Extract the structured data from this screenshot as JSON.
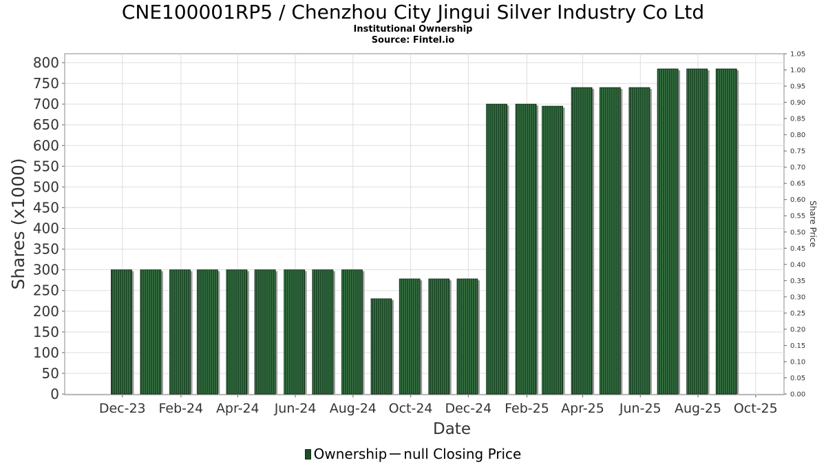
{
  "title": "CNE100001RP5 / Chenzhou City Jingui Silver Industry Co Ltd",
  "subtitle": "Institutional Ownership",
  "source": "Source: Fintel.io",
  "legend": {
    "ownership": "Ownership",
    "price": "null Closing Price"
  },
  "colors": {
    "bar": "#1f4d2a",
    "bar_stripe": "#3d7a49",
    "bar_shadow": "#9a9a9a",
    "grid": "#dddddd"
  },
  "chart_data": {
    "type": "bar",
    "xlabel": "Date",
    "ylabel": "Shares (x1000)",
    "y2label": "Share Price",
    "ylim": [
      0,
      820
    ],
    "y2lim": [
      0,
      1.05
    ],
    "yticks": [
      0,
      50,
      100,
      150,
      200,
      250,
      300,
      350,
      400,
      450,
      500,
      550,
      600,
      650,
      700,
      750,
      800
    ],
    "y2ticks": [
      "0.00",
      "0.05",
      "0.10",
      "0.15",
      "0.20",
      "0.25",
      "0.30",
      "0.35",
      "0.40",
      "0.45",
      "0.50",
      "0.55",
      "0.60",
      "0.65",
      "0.70",
      "0.75",
      "0.80",
      "0.85",
      "0.90",
      "0.95",
      "1.00",
      "1.05"
    ],
    "x_start": "2023-10-01",
    "x_end": "2025-10-31",
    "xticks": [
      {
        "date": "2023-12-01",
        "label": "Dec-23"
      },
      {
        "date": "2024-02-01",
        "label": "Feb-24"
      },
      {
        "date": "2024-04-01",
        "label": "Apr-24"
      },
      {
        "date": "2024-06-01",
        "label": "Jun-24"
      },
      {
        "date": "2024-08-01",
        "label": "Aug-24"
      },
      {
        "date": "2024-10-01",
        "label": "Oct-24"
      },
      {
        "date": "2024-12-01",
        "label": "Dec-24"
      },
      {
        "date": "2025-02-01",
        "label": "Feb-25"
      },
      {
        "date": "2025-04-01",
        "label": "Apr-25"
      },
      {
        "date": "2025-06-01",
        "label": "Jun-25"
      },
      {
        "date": "2025-08-01",
        "label": "Aug-25"
      },
      {
        "date": "2025-10-01",
        "label": "Oct-25"
      }
    ],
    "grid": true,
    "legend_position": "bottom",
    "series": [
      {
        "name": "Ownership",
        "points": [
          {
            "date": "2023-11-30",
            "value": 300
          },
          {
            "date": "2023-12-31",
            "value": 300
          },
          {
            "date": "2024-01-31",
            "value": 300
          },
          {
            "date": "2024-02-29",
            "value": 300
          },
          {
            "date": "2024-03-31",
            "value": 300
          },
          {
            "date": "2024-04-30",
            "value": 300
          },
          {
            "date": "2024-05-31",
            "value": 300
          },
          {
            "date": "2024-06-30",
            "value": 300
          },
          {
            "date": "2024-07-31",
            "value": 300
          },
          {
            "date": "2024-08-31",
            "value": 230
          },
          {
            "date": "2024-09-30",
            "value": 278
          },
          {
            "date": "2024-10-31",
            "value": 278
          },
          {
            "date": "2024-11-30",
            "value": 278
          },
          {
            "date": "2024-12-31",
            "value": 700
          },
          {
            "date": "2025-01-31",
            "value": 700
          },
          {
            "date": "2025-02-28",
            "value": 695
          },
          {
            "date": "2025-03-31",
            "value": 740
          },
          {
            "date": "2025-04-30",
            "value": 740
          },
          {
            "date": "2025-05-31",
            "value": 740
          },
          {
            "date": "2025-06-30",
            "value": 785
          },
          {
            "date": "2025-07-31",
            "value": 785
          },
          {
            "date": "2025-08-31",
            "value": 785
          }
        ]
      }
    ]
  }
}
